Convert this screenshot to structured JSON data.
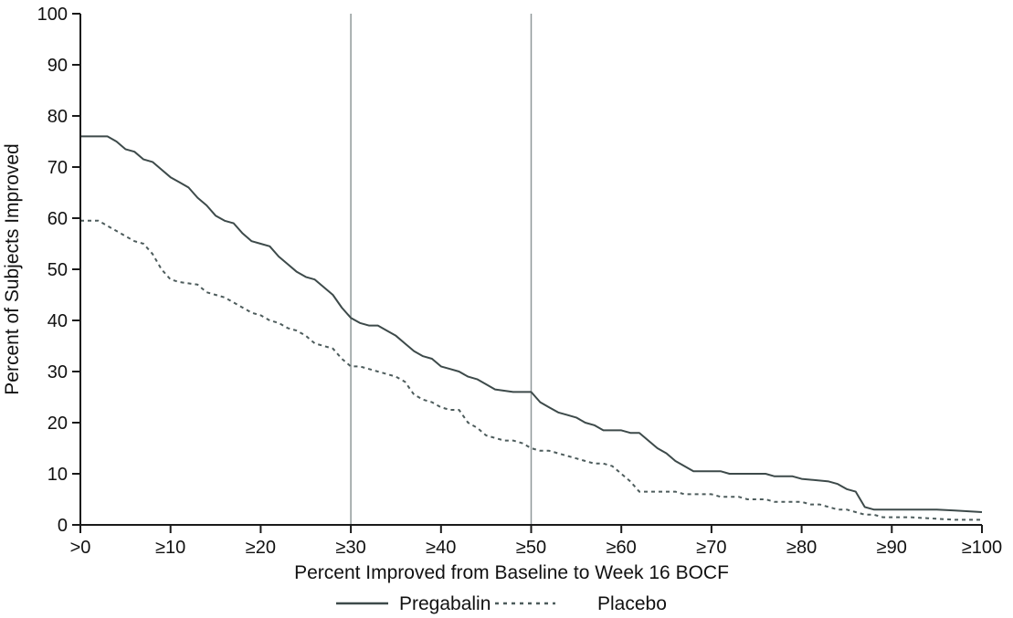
{
  "chart_data": {
    "type": "line",
    "title": "",
    "xlabel": "Percent Improved from Baseline to Week 16 BOCF",
    "ylabel": "Percent of Subjects Improved",
    "xlim": [
      0,
      100
    ],
    "ylim": [
      0,
      100
    ],
    "grid": false,
    "legend_position": "bottom",
    "axis_color": "#1a1a1a",
    "x_ticks": [
      0,
      10,
      20,
      30,
      40,
      50,
      60,
      70,
      80,
      90,
      100
    ],
    "x_tick_labels": [
      ">0",
      "≥10",
      "≥20",
      "≥30",
      "≥40",
      "≥50",
      "≥60",
      "≥70",
      "≥80",
      "≥90",
      "≥100"
    ],
    "y_ticks": [
      0,
      10,
      20,
      30,
      40,
      50,
      60,
      70,
      80,
      90,
      100
    ],
    "reference_lines": {
      "x": [
        30,
        50
      ],
      "color": "#8f9899"
    },
    "series": [
      {
        "name": "Pregabalin",
        "style": "solid",
        "color": "#3d4a4a",
        "points": [
          [
            0,
            76
          ],
          [
            3,
            76
          ],
          [
            4,
            75
          ],
          [
            5,
            73.5
          ],
          [
            6,
            73
          ],
          [
            7,
            71.5
          ],
          [
            8,
            71
          ],
          [
            9,
            69.5
          ],
          [
            10,
            68
          ],
          [
            11,
            67
          ],
          [
            12,
            66
          ],
          [
            13,
            64
          ],
          [
            14,
            62.5
          ],
          [
            15,
            60.5
          ],
          [
            16,
            59.5
          ],
          [
            17,
            59
          ],
          [
            18,
            57
          ],
          [
            19,
            55.5
          ],
          [
            20,
            55
          ],
          [
            21,
            54.5
          ],
          [
            22,
            52.5
          ],
          [
            23,
            51
          ],
          [
            24,
            49.5
          ],
          [
            25,
            48.5
          ],
          [
            26,
            48
          ],
          [
            27,
            46.5
          ],
          [
            28,
            45
          ],
          [
            29,
            42.5
          ],
          [
            30,
            40.5
          ],
          [
            31,
            39.5
          ],
          [
            32,
            39
          ],
          [
            33,
            39
          ],
          [
            34,
            38
          ],
          [
            35,
            37
          ],
          [
            36,
            35.5
          ],
          [
            37,
            34
          ],
          [
            38,
            33
          ],
          [
            39,
            32.5
          ],
          [
            40,
            31
          ],
          [
            41,
            30.5
          ],
          [
            42,
            30
          ],
          [
            43,
            29
          ],
          [
            44,
            28.5
          ],
          [
            45,
            27.5
          ],
          [
            46,
            26.5
          ],
          [
            48,
            26
          ],
          [
            50,
            26
          ],
          [
            51,
            24
          ],
          [
            52,
            23
          ],
          [
            53,
            22
          ],
          [
            54,
            21.5
          ],
          [
            55,
            21
          ],
          [
            56,
            20
          ],
          [
            57,
            19.5
          ],
          [
            58,
            18.5
          ],
          [
            60,
            18.5
          ],
          [
            61,
            18
          ],
          [
            62,
            18
          ],
          [
            63,
            16.5
          ],
          [
            64,
            15
          ],
          [
            65,
            14
          ],
          [
            66,
            12.5
          ],
          [
            67,
            11.5
          ],
          [
            68,
            10.5
          ],
          [
            71,
            10.5
          ],
          [
            72,
            10
          ],
          [
            76,
            10
          ],
          [
            77,
            9.5
          ],
          [
            79,
            9.5
          ],
          [
            80,
            9
          ],
          [
            83,
            8.5
          ],
          [
            84,
            8
          ],
          [
            85,
            7
          ],
          [
            86,
            6.5
          ],
          [
            87,
            3.5
          ],
          [
            88,
            3
          ],
          [
            95,
            3
          ],
          [
            97,
            2.8
          ],
          [
            100,
            2.5
          ]
        ]
      },
      {
        "name": "Placebo",
        "style": "dashed",
        "color": "#4d5c5c",
        "points": [
          [
            0,
            59.5
          ],
          [
            2,
            59.5
          ],
          [
            3,
            58.5
          ],
          [
            4,
            57.5
          ],
          [
            5,
            56.5
          ],
          [
            6,
            55.5
          ],
          [
            7,
            55
          ],
          [
            8,
            53
          ],
          [
            9,
            50
          ],
          [
            10,
            48
          ],
          [
            11,
            47.5
          ],
          [
            13,
            47
          ],
          [
            14,
            45.5
          ],
          [
            15,
            45
          ],
          [
            16,
            44.5
          ],
          [
            17,
            43.5
          ],
          [
            18,
            42.5
          ],
          [
            19,
            41.5
          ],
          [
            20,
            41
          ],
          [
            21,
            40
          ],
          [
            22,
            39.5
          ],
          [
            23,
            38.5
          ],
          [
            24,
            38
          ],
          [
            25,
            37
          ],
          [
            26,
            35.5
          ],
          [
            27,
            35
          ],
          [
            28,
            34.5
          ],
          [
            29,
            32.5
          ],
          [
            30,
            31
          ],
          [
            31,
            31
          ],
          [
            32,
            30.5
          ],
          [
            33,
            30
          ],
          [
            34,
            29.5
          ],
          [
            35,
            29
          ],
          [
            36,
            28
          ],
          [
            37,
            25.5
          ],
          [
            38,
            24.5
          ],
          [
            39,
            24
          ],
          [
            40,
            23
          ],
          [
            41,
            22.5
          ],
          [
            42,
            22.5
          ],
          [
            43,
            20
          ],
          [
            44,
            19
          ],
          [
            45,
            17.5
          ],
          [
            46,
            17
          ],
          [
            47,
            16.5
          ],
          [
            48,
            16.5
          ],
          [
            49,
            16
          ],
          [
            50,
            15
          ],
          [
            51,
            14.5
          ],
          [
            52,
            14.5
          ],
          [
            53,
            14
          ],
          [
            54,
            13.5
          ],
          [
            55,
            13
          ],
          [
            56,
            12.5
          ],
          [
            57,
            12
          ],
          [
            58,
            12
          ],
          [
            59,
            11.5
          ],
          [
            60,
            10
          ],
          [
            61,
            8.5
          ],
          [
            62,
            6.5
          ],
          [
            66,
            6.5
          ],
          [
            67,
            6
          ],
          [
            70,
            6
          ],
          [
            71,
            5.5
          ],
          [
            73,
            5.5
          ],
          [
            74,
            5
          ],
          [
            76,
            5
          ],
          [
            77,
            4.5
          ],
          [
            80,
            4.5
          ],
          [
            81,
            4
          ],
          [
            82,
            4
          ],
          [
            83,
            3.5
          ],
          [
            84,
            3
          ],
          [
            85,
            3
          ],
          [
            86,
            2.5
          ],
          [
            87,
            2
          ],
          [
            88,
            2
          ],
          [
            89,
            1.5
          ],
          [
            92,
            1.5
          ],
          [
            94,
            1.3
          ],
          [
            97,
            1
          ],
          [
            100,
            1
          ]
        ]
      }
    ]
  }
}
